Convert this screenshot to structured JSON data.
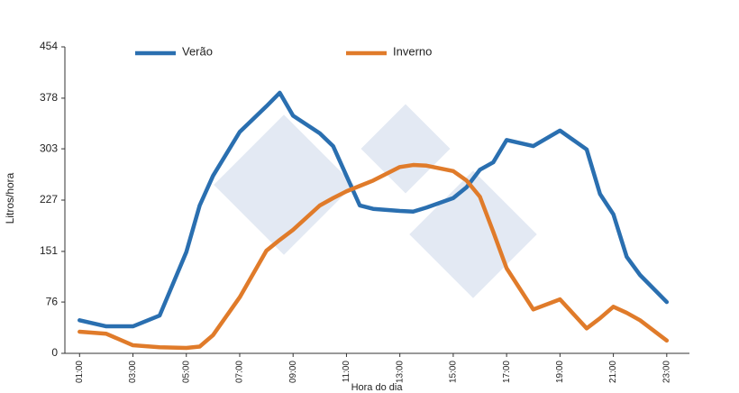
{
  "chart_data": {
    "type": "line",
    "x_label": "Hora do dia",
    "y_label": "Litros/hora",
    "x": [
      1,
      2,
      3,
      4,
      5,
      5.5,
      6,
      7,
      8,
      8.5,
      9,
      10,
      10.5,
      11,
      11.5,
      12,
      13,
      13.5,
      14,
      15,
      15.5,
      16,
      16.5,
      17,
      18,
      19,
      20,
      20.5,
      21,
      21.5,
      22,
      23
    ],
    "series": [
      {
        "name": "Verão",
        "color": "#2a6fb0",
        "values": [
          49,
          40,
          40,
          56,
          150,
          219,
          263,
          328,
          366,
          386,
          352,
          326,
          307,
          263,
          219,
          214,
          211,
          210,
          216,
          230,
          246,
          272,
          283,
          316,
          307,
          330,
          302,
          236,
          206,
          143,
          116,
          76
        ]
      },
      {
        "name": "Inverno",
        "color": "#e07b2a",
        "values": [
          32,
          29,
          12,
          9,
          8,
          10,
          27,
          83,
          152,
          168,
          183,
          219,
          230,
          240,
          248,
          256,
          276,
          279,
          278,
          270,
          256,
          232,
          180,
          126,
          65,
          80,
          37,
          52,
          69,
          60,
          49,
          19
        ]
      }
    ],
    "xlim": [
      0.45,
      23.85
    ],
    "xticks": [
      {
        "value": 1,
        "label": "01:00"
      },
      {
        "value": 3,
        "label": "03:00"
      },
      {
        "value": 5,
        "label": "05:00"
      },
      {
        "value": 7,
        "label": "07:00"
      },
      {
        "value": 9,
        "label": "09:00"
      },
      {
        "value": 11,
        "label": "11:00"
      },
      {
        "value": 13,
        "label": "13:00"
      },
      {
        "value": 15,
        "label": "15:00"
      },
      {
        "value": 17,
        "label": "17:00"
      },
      {
        "value": 19,
        "label": "19:00"
      },
      {
        "value": 21,
        "label": "21:00"
      },
      {
        "value": 23,
        "label": "23:00"
      }
    ],
    "ylim": [
      0,
      454
    ],
    "yticks": [
      0,
      76,
      151,
      227,
      303,
      378,
      454
    ],
    "grid": false
  }
}
